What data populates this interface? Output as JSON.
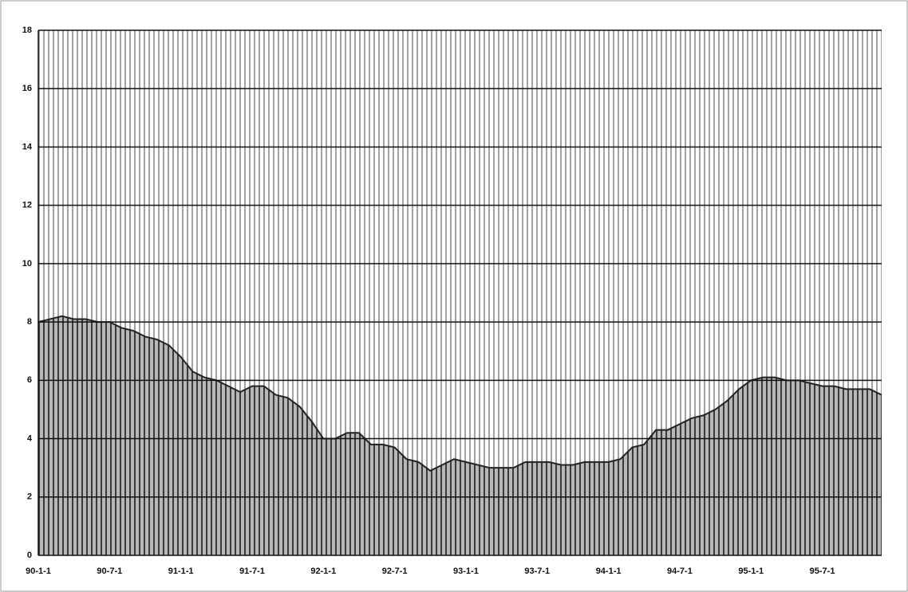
{
  "chart_data": {
    "type": "area",
    "categories": [
      "90-1-1",
      null,
      null,
      null,
      null,
      null,
      "90-7-1",
      null,
      null,
      null,
      null,
      null,
      "91-1-1",
      null,
      null,
      null,
      null,
      null,
      "91-7-1",
      null,
      null,
      null,
      null,
      null,
      "92-1-1",
      null,
      null,
      null,
      null,
      null,
      "92-7-1",
      null,
      null,
      null,
      null,
      null,
      "93-1-1",
      null,
      null,
      null,
      null,
      null,
      "93-7-1",
      null,
      null,
      null,
      null,
      null,
      "94-1-1",
      null,
      null,
      null,
      null,
      null,
      "94-7-1",
      null,
      null,
      null,
      null,
      null,
      "95-1-1",
      null,
      null,
      null,
      null,
      null,
      "95-7-1",
      null,
      null,
      null,
      null,
      null
    ],
    "values": [
      8.0,
      8.1,
      8.2,
      8.1,
      8.1,
      8.0,
      8.0,
      7.8,
      7.7,
      7.5,
      7.4,
      7.2,
      6.8,
      6.3,
      6.1,
      6.0,
      5.8,
      5.6,
      5.8,
      5.8,
      5.5,
      5.4,
      5.1,
      4.6,
      4.0,
      4.0,
      4.2,
      4.2,
      3.8,
      3.8,
      3.7,
      3.3,
      3.2,
      2.9,
      3.1,
      3.3,
      3.2,
      3.1,
      3.0,
      3.0,
      3.0,
      3.2,
      3.2,
      3.2,
      3.1,
      3.1,
      3.2,
      3.2,
      3.2,
      3.3,
      3.7,
      3.8,
      4.3,
      4.3,
      4.5,
      4.7,
      4.8,
      5.0,
      5.3,
      5.7,
      6.0,
      6.1,
      6.1,
      6.0,
      6.0,
      5.9,
      5.8,
      5.8,
      5.7,
      5.7,
      5.7,
      5.5
    ],
    "color": "#7a7a7a",
    "ylim": [
      0,
      18
    ],
    "yticks": [
      0,
      2,
      4,
      6,
      8,
      10,
      12,
      14,
      16,
      18
    ],
    "grid": true
  }
}
